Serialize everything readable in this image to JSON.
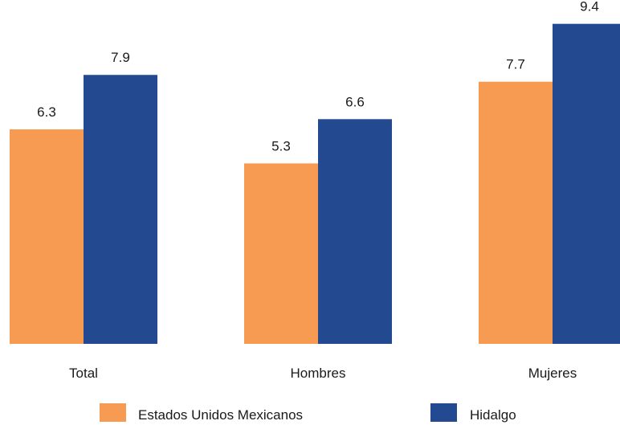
{
  "chart_data": {
    "type": "bar",
    "categories": [
      "Total",
      "Hombres",
      "Mujeres"
    ],
    "series": [
      {
        "name": "Estados Unidos Mexicanos",
        "values": [
          6.3,
          5.3,
          7.7
        ],
        "color": "#F79A52"
      },
      {
        "name": "Hidalgo",
        "values": [
          7.9,
          6.6,
          9.4
        ],
        "color": "#234A91"
      }
    ],
    "value_labels": [
      [
        "6.3",
        "5.3",
        "7.7"
      ],
      [
        "7.9",
        "6.6",
        "9.4"
      ]
    ],
    "ylim": [
      0,
      10.1
    ],
    "grid": false,
    "legend": "bottom"
  }
}
